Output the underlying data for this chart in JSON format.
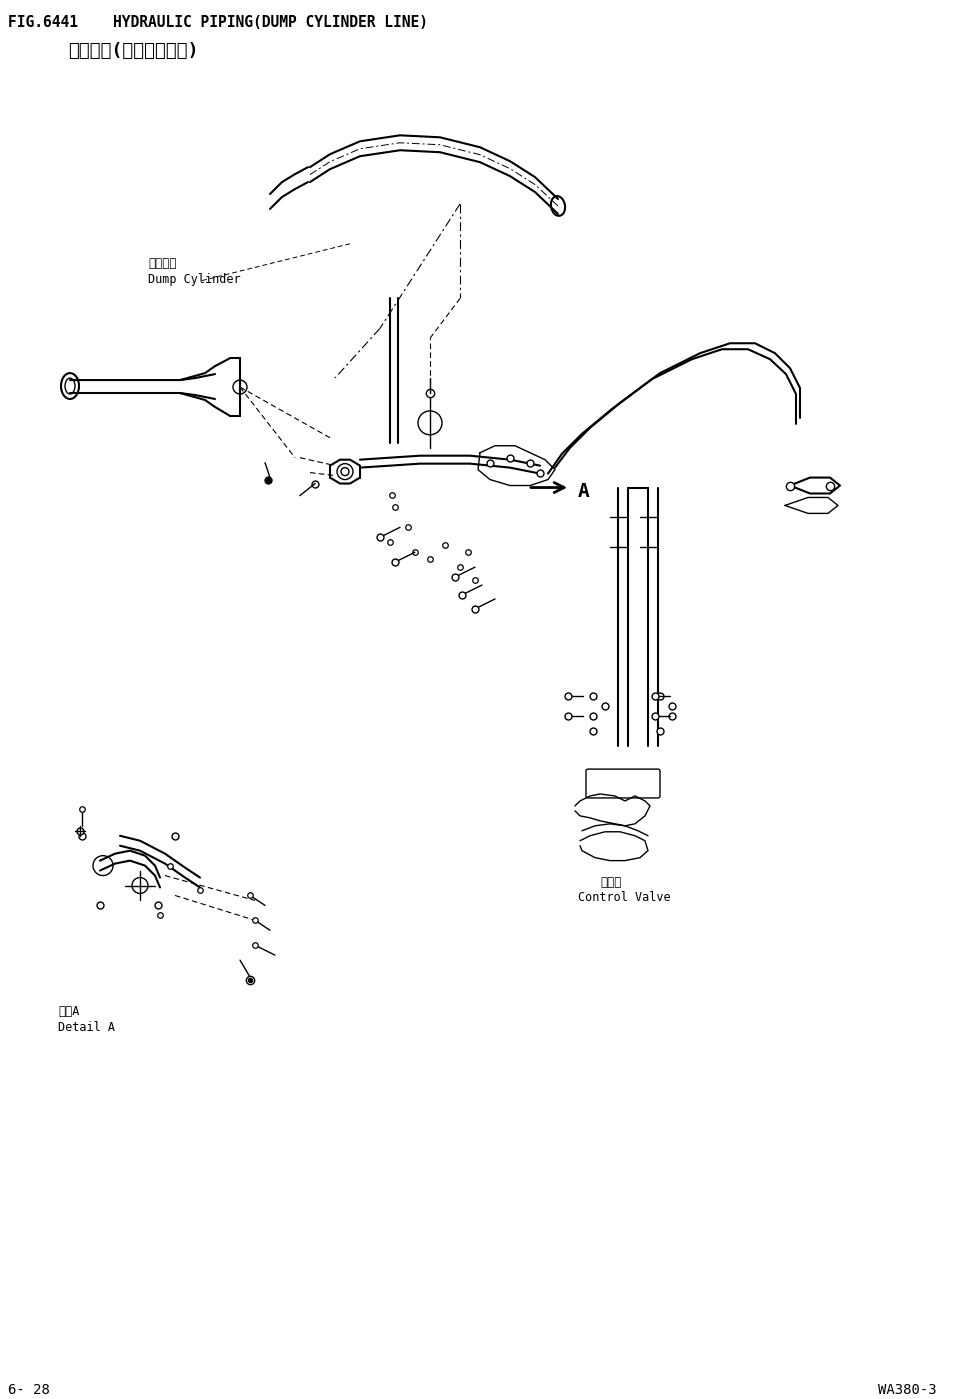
{
  "title_line1": "FIG.6441    HYDRAULIC PIPING(DUMP CYLINDER LINE)",
  "title_line2": "液压配管(铲斗油缸配管)",
  "footer_left": "6- 28",
  "footer_right": "WA380-3",
  "bg_color": "#ffffff",
  "text_color": "#000000",
  "label_dump_cylinder_cn": "铲斗油缸",
  "label_dump_cylinder_en": "Dump Cylinder",
  "label_detail_a_cn": "详细A",
  "label_detail_a_en": "Detail A",
  "label_control_valve_cn": "控制阀",
  "label_control_valve_en": "Control Valve",
  "label_A": "A",
  "figsize": [
    9.73,
    13.99
  ],
  "dpi": 100
}
